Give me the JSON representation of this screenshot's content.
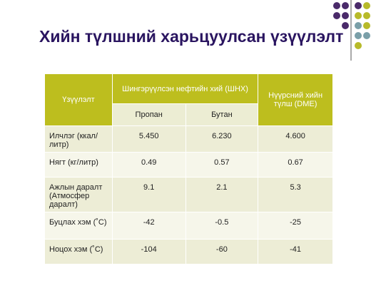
{
  "title": "Хийн түлшний харьцуулсан үзүүлэлт",
  "table": {
    "headers": {
      "indicator": "Үзүүлэлт",
      "lpg": "Шингэрүүлсэн нефтийн хий (ШНХ)",
      "dme": "Нүүрсний хийн түлш (DME)",
      "propane": "Пропан",
      "butane": "Бутан"
    },
    "rows": [
      [
        "Илчлэг (ккал/литр)",
        "5.450",
        "6.230",
        "4.600"
      ],
      [
        "Нягт (кг/литр)",
        "0.49",
        "0.57",
        "0.67"
      ],
      [
        "Ажлын даралт (Атмосфер даралт)",
        "9.1",
        "2.1",
        "5.3"
      ],
      [
        "Буцлах хэм (˚C)",
        "-42",
        "-0.5",
        "-25"
      ],
      [
        "Ноцох хэм (˚C)",
        "-104",
        "-60",
        "-41"
      ]
    ]
  }
}
